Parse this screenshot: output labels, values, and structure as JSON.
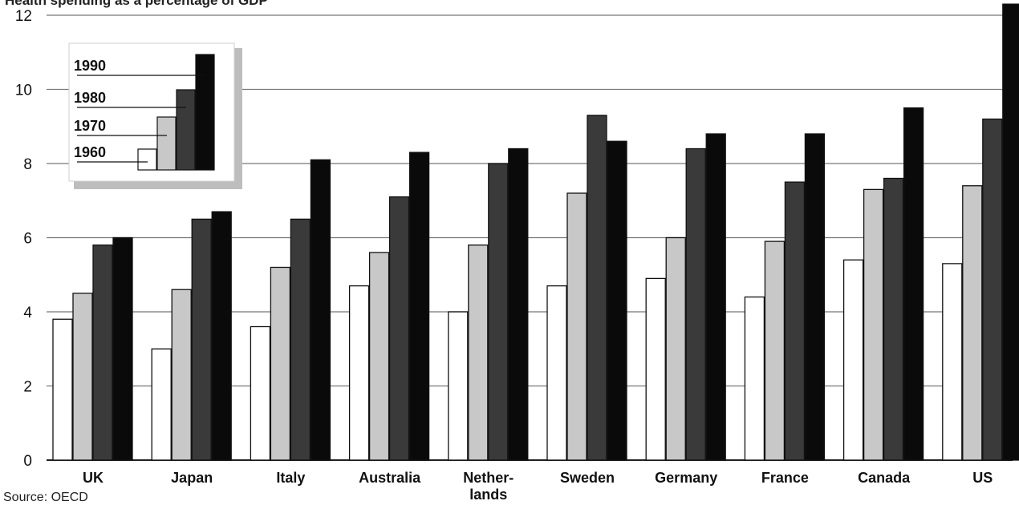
{
  "title": "Health spending as a percentage of GDP",
  "source": "Source: OECD",
  "chart_data": {
    "type": "bar",
    "title": "Health spending as a percentage of GDP",
    "xlabel": "",
    "ylabel": "",
    "ylim": [
      0,
      12
    ],
    "yticks": [
      0,
      2,
      4,
      6,
      8,
      10,
      12
    ],
    "grid": true,
    "legend_position": "top-left",
    "categories": [
      [
        "UK"
      ],
      [
        "Japan"
      ],
      [
        "Italy"
      ],
      [
        "Australia"
      ],
      [
        "Nether-",
        "lands"
      ],
      [
        "Sweden"
      ],
      [
        "Germany"
      ],
      [
        "France"
      ],
      [
        "Canada"
      ],
      [
        "US"
      ]
    ],
    "series": [
      {
        "name": "1960",
        "color": "#ffffff",
        "values": [
          3.8,
          3.0,
          3.6,
          4.7,
          4.0,
          4.7,
          4.9,
          4.4,
          5.4,
          5.3
        ]
      },
      {
        "name": "1970",
        "color": "#c8c8c8",
        "values": [
          4.5,
          4.6,
          5.2,
          5.6,
          5.8,
          7.2,
          6.0,
          5.9,
          7.3,
          7.4
        ]
      },
      {
        "name": "1980",
        "color": "#3a3a3a",
        "values": [
          5.8,
          6.5,
          6.5,
          7.1,
          8.0,
          9.3,
          8.4,
          7.5,
          7.6,
          9.2
        ]
      },
      {
        "name": "1990",
        "color": "#0a0a0a",
        "values": [
          6.0,
          6.7,
          8.1,
          8.3,
          8.4,
          8.6,
          8.8,
          8.8,
          9.5,
          12.3
        ]
      }
    ]
  }
}
